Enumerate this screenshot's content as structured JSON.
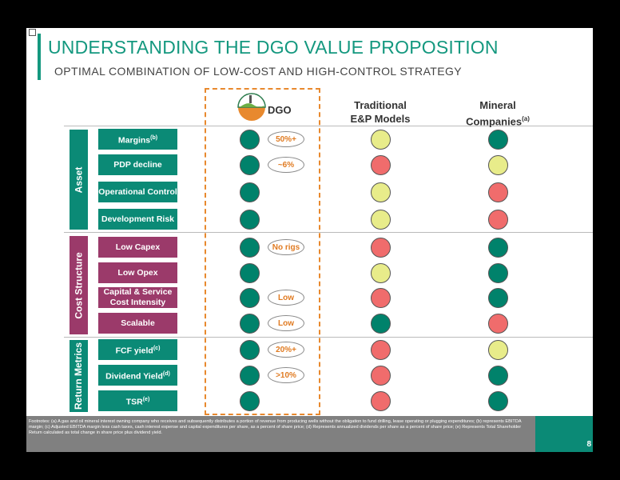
{
  "header": {
    "title": "UNDERSTANDING THE DGO VALUE PROPOSITION",
    "subtitle": "OPTIMAL COMBINATION OF LOW-COST AND HIGH-CONTROL STRATEGY"
  },
  "columns": [
    {
      "text": "DGO"
    },
    {
      "text": "Traditional E&P Models"
    },
    {
      "text": "Mineral Companies",
      "sup": "(a)"
    }
  ],
  "groups": [
    {
      "label": "Asset",
      "color": "#0b8a76",
      "rows": [
        {
          "label": "Margins",
          "sup": "(b)",
          "badge": "50%+",
          "ratings": [
            "#00826b",
            "#e8ec8a",
            "#00826b"
          ]
        },
        {
          "label": "PDP decline",
          "badge": "~6%",
          "ratings": [
            "#00826b",
            "#f06c6c",
            "#e8ec8a"
          ]
        },
        {
          "label": "Operational Control",
          "ratings": [
            "#00826b",
            "#e8ec8a",
            "#f06c6c"
          ]
        },
        {
          "label": "Development Risk",
          "ratings": [
            "#00826b",
            "#e8ec8a",
            "#f06c6c"
          ]
        }
      ]
    },
    {
      "label": "Cost Structure",
      "color": "#9b3a6a",
      "rows": [
        {
          "label": "Low Capex",
          "badge": "No rigs",
          "ratings": [
            "#00826b",
            "#f06c6c",
            "#00826b"
          ]
        },
        {
          "label": "Low Opex",
          "ratings": [
            "#00826b",
            "#e8ec8a",
            "#00826b"
          ]
        },
        {
          "label": "Capital & Service Cost Intensity",
          "badge": "Low",
          "ratings": [
            "#00826b",
            "#f06c6c",
            "#00826b"
          ]
        },
        {
          "label": "Scalable",
          "badge": "Low",
          "ratings": [
            "#00826b",
            "#00826b",
            "#f06c6c"
          ]
        }
      ]
    },
    {
      "label": "Return Metrics",
      "color": "#0b8a76",
      "rows": [
        {
          "label": "FCF yield",
          "sup": "(c)",
          "badge": "20%+",
          "ratings": [
            "#00826b",
            "#f06c6c",
            "#e8ec8a"
          ]
        },
        {
          "label": "Dividend Yield",
          "sup": "(d)",
          "badge": ">10%",
          "ratings": [
            "#00826b",
            "#f06c6c",
            "#00826b"
          ]
        },
        {
          "label": "TSR",
          "sup": "(e)",
          "ratings": [
            "#00826b",
            "#f06c6c",
            "#00826b"
          ]
        }
      ]
    }
  ],
  "footnote": "Footnotes: (a) A gas and oil mineral interest owning company who receives and subsequently distributes a portion of revenue from producing wells without the obligation to fund drilling, lease operating or plugging expenditures; (b) represents EBITDA margin; (c) Adjusted EBITDA margin less cash taxes, cash interest expense and capital expenditures per share, as a percent of share price; (d) Represents annualized dividends per share as a percent of share price; (e) Represents Total Shareholder Return calculated as total change in share price plus dividend yield.",
  "page_number": "8"
}
